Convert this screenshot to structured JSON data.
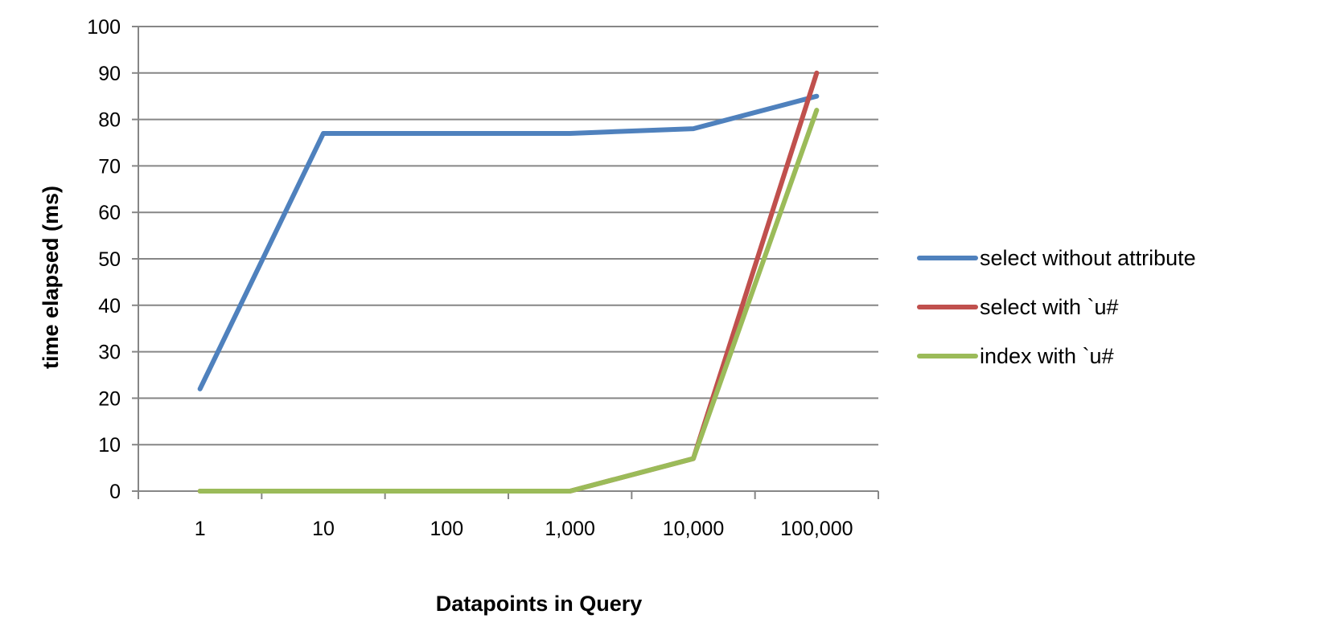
{
  "chart_data": {
    "type": "line",
    "xlabel": "Datapoints in Query",
    "ylabel": "time elapsed (ms)",
    "categories": [
      "1",
      "10",
      "100",
      "1,000",
      "10,000",
      "100,000"
    ],
    "ylim": [
      0,
      100
    ],
    "yticks": [
      "0",
      "10",
      "20",
      "30",
      "40",
      "50",
      "60",
      "70",
      "80",
      "90",
      "100"
    ],
    "grid": "horizontal",
    "legend_position": "right",
    "series": [
      {
        "name": "select without attribute",
        "color": "#4F81BD",
        "values": [
          22,
          77,
          77,
          77,
          78,
          85
        ]
      },
      {
        "name": "select with `u#",
        "color": "#C0504D",
        "values": [
          0,
          0,
          0,
          0,
          7,
          90
        ]
      },
      {
        "name": "index with `u#",
        "color": "#9BBB59",
        "values": [
          0,
          0,
          0,
          0,
          7,
          82
        ]
      }
    ]
  }
}
